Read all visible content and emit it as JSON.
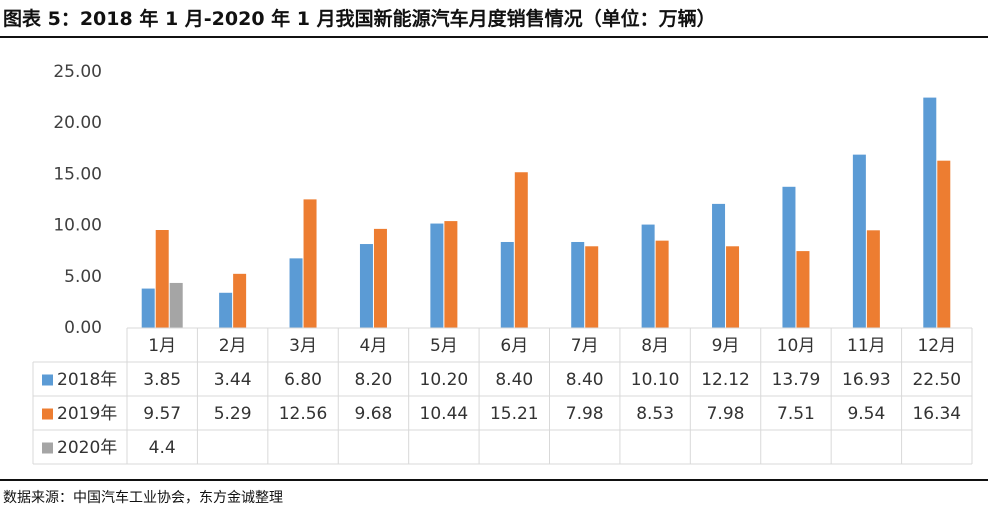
{
  "title": "图表 5：2018 年 1 月-2020 年 1 月我国新能源汽车月度销售情况（单位：万辆）",
  "source": "数据来源：中国汽车工业协会，东方金诚整理",
  "colors": {
    "s2018": "#5b9bd5",
    "s2019": "#ed7d31",
    "s2020": "#a5a5a5",
    "grid": "#d9d9d9",
    "axis": "#595959"
  },
  "chart_data": {
    "type": "bar",
    "title": "图表 5：2018 年 1 月-2020 年 1 月我国新能源汽车月度销售情况（单位：万辆）",
    "categories": [
      "1月",
      "2月",
      "3月",
      "4月",
      "5月",
      "6月",
      "7月",
      "8月",
      "9月",
      "10月",
      "11月",
      "12月"
    ],
    "series": [
      {
        "name": "2018年",
        "values": [
          3.85,
          3.44,
          6.8,
          8.2,
          10.2,
          8.4,
          8.4,
          10.1,
          12.12,
          13.79,
          16.93,
          22.5
        ],
        "labels": [
          "3.85",
          "3.44",
          "6.80",
          "8.20",
          "10.20",
          "8.40",
          "8.40",
          "10.10",
          "12.12",
          "13.79",
          "16.93",
          "22.50"
        ]
      },
      {
        "name": "2019年",
        "values": [
          9.57,
          5.29,
          12.56,
          9.68,
          10.44,
          15.21,
          7.98,
          8.53,
          7.98,
          7.51,
          9.54,
          16.34
        ],
        "labels": [
          "9.57",
          "5.29",
          "12.56",
          "9.68",
          "10.44",
          "15.21",
          "7.98",
          "8.53",
          "7.98",
          "7.51",
          "9.54",
          "16.34"
        ]
      },
      {
        "name": "2020年",
        "values": [
          4.4,
          null,
          null,
          null,
          null,
          null,
          null,
          null,
          null,
          null,
          null,
          null
        ],
        "labels": [
          "4.4",
          "",
          "",
          "",
          "",
          "",
          "",
          "",
          "",
          "",
          "",
          ""
        ]
      }
    ],
    "yticks": [
      "0.00",
      "5.00",
      "10.00",
      "15.00",
      "20.00",
      "25.00"
    ],
    "ylim": [
      0,
      25
    ],
    "xlabel": "",
    "ylabel": "单位：万辆",
    "grid": false,
    "legend": "data-table-left"
  }
}
